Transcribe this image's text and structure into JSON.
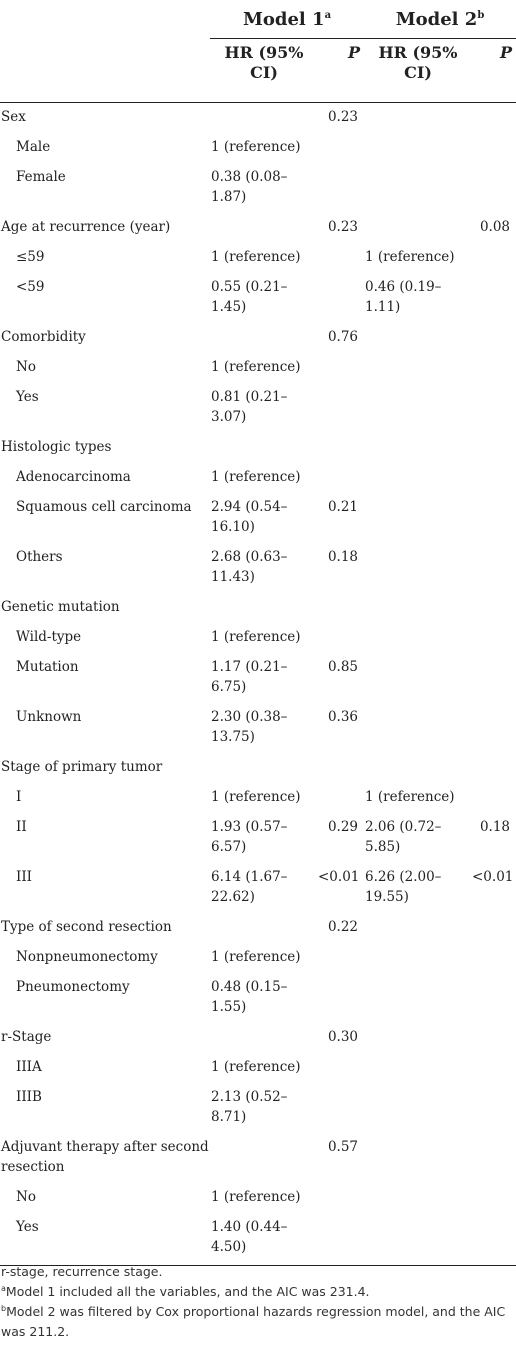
{
  "header": {
    "model1": "Model 1",
    "model1_sup": "a",
    "model2": "Model 2",
    "model2_sup": "b",
    "hr_col": "HR (95% CI)",
    "p_col": "P"
  },
  "rows": [
    {
      "type": "cat",
      "label": "Sex",
      "hr1": "",
      "p1": "0.23",
      "hr2": "",
      "p2": ""
    },
    {
      "type": "lvl",
      "label": "Male",
      "hr1": "1 (reference)",
      "p1": "",
      "hr2": "",
      "p2": ""
    },
    {
      "type": "lvl",
      "label": "Female",
      "hr1": "0.38 (0.08–1.87)",
      "p1": "",
      "hr2": "",
      "p2": ""
    },
    {
      "type": "cat",
      "label": "Age at recurrence (year)",
      "hr1": "",
      "p1": "0.23",
      "hr2": "",
      "p2": "0.08"
    },
    {
      "type": "lvl",
      "label": "≤59",
      "hr1": "1 (reference)",
      "p1": "",
      "hr2": "1 (reference)",
      "p2": ""
    },
    {
      "type": "lvl",
      "label": "<59",
      "hr1": "0.55 (0.21–1.45)",
      "p1": "",
      "hr2": "0.46 (0.19–1.11)",
      "p2": ""
    },
    {
      "type": "cat",
      "label": "Comorbidity",
      "hr1": "",
      "p1": "0.76",
      "hr2": "",
      "p2": ""
    },
    {
      "type": "lvl",
      "label": "No",
      "hr1": "1 (reference)",
      "p1": "",
      "hr2": "",
      "p2": ""
    },
    {
      "type": "lvl",
      "label": "Yes",
      "hr1": "0.81 (0.21–3.07)",
      "p1": "",
      "hr2": "",
      "p2": ""
    },
    {
      "type": "cat",
      "label": "Histologic types",
      "hr1": "",
      "p1": "",
      "hr2": "",
      "p2": ""
    },
    {
      "type": "lvl",
      "label": "Adenocarcinoma",
      "hr1": "1 (reference)",
      "p1": "",
      "hr2": "",
      "p2": ""
    },
    {
      "type": "lvl",
      "label": "Squamous cell carcinoma",
      "hr1": "2.94 (0.54–16.10)",
      "p1": "0.21",
      "hr2": "",
      "p2": ""
    },
    {
      "type": "lvl",
      "label": "Others",
      "hr1": "2.68 (0.63–11.43)",
      "p1": "0.18",
      "hr2": "",
      "p2": ""
    },
    {
      "type": "cat",
      "label": "Genetic mutation",
      "hr1": "",
      "p1": "",
      "hr2": "",
      "p2": ""
    },
    {
      "type": "lvl",
      "label": "Wild-type",
      "hr1": "1 (reference)",
      "p1": "",
      "hr2": "",
      "p2": ""
    },
    {
      "type": "lvl",
      "label": "Mutation",
      "hr1": "1.17 (0.21–6.75)",
      "p1": "0.85",
      "hr2": "",
      "p2": ""
    },
    {
      "type": "lvl",
      "label": "Unknown",
      "hr1": "2.30 (0.38–13.75)",
      "p1": "0.36",
      "hr2": "",
      "p2": ""
    },
    {
      "type": "cat",
      "label": "Stage of primary tumor",
      "hr1": "",
      "p1": "",
      "hr2": "",
      "p2": ""
    },
    {
      "type": "lvl",
      "label": "I",
      "hr1": "1 (reference)",
      "p1": "",
      "hr2": "1 (reference)",
      "p2": ""
    },
    {
      "type": "lvl",
      "label": "II",
      "hr1": "1.93 (0.57–6.57)",
      "p1": "0.29",
      "hr2": "2.06 (0.72–5.85)",
      "p2": "0.18"
    },
    {
      "type": "lvl",
      "label": "III",
      "hr1": "6.14 (1.67–22.62)",
      "p1": "<0.01",
      "hr2": "6.26 (2.00–19.55)",
      "p2": "<0.01"
    },
    {
      "type": "cat",
      "label": "Type of second resection",
      "hr1": "",
      "p1": "0.22",
      "hr2": "",
      "p2": ""
    },
    {
      "type": "lvl",
      "label": "Nonpneumonectomy",
      "hr1": "1 (reference)",
      "p1": "",
      "hr2": "",
      "p2": ""
    },
    {
      "type": "lvl",
      "label": "Pneumonectomy",
      "hr1": "0.48 (0.15–1.55)",
      "p1": "",
      "hr2": "",
      "p2": ""
    },
    {
      "type": "cat",
      "label": "r-Stage",
      "hr1": "",
      "p1": "0.30",
      "hr2": "",
      "p2": ""
    },
    {
      "type": "lvl",
      "label": "IIIA",
      "hr1": "1 (reference)",
      "p1": "",
      "hr2": "",
      "p2": ""
    },
    {
      "type": "lvl",
      "label": "IIIB",
      "hr1": "2.13 (0.52–8.71)",
      "p1": "",
      "hr2": "",
      "p2": ""
    },
    {
      "type": "cat",
      "label": "Adjuvant therapy after second resection",
      "hr1": "",
      "p1": "0.57",
      "hr2": "",
      "p2": ""
    },
    {
      "type": "lvl",
      "label": "No",
      "hr1": "1 (reference)",
      "p1": "",
      "hr2": "",
      "p2": ""
    },
    {
      "type": "lvl",
      "label": "Yes",
      "hr1": "1.40 (0.44–4.50)",
      "p1": "",
      "hr2": "",
      "p2": ""
    }
  ],
  "footnotes": {
    "abbrev": "r-stage, recurrence stage.",
    "a_mark": "a",
    "a_text": "Model 1 included all the variables, and the AIC was 231.4.",
    "b_mark": "b",
    "b_text": "Model 2 was filtered by Cox proportional hazards regression model, and the AIC was 211.2."
  }
}
